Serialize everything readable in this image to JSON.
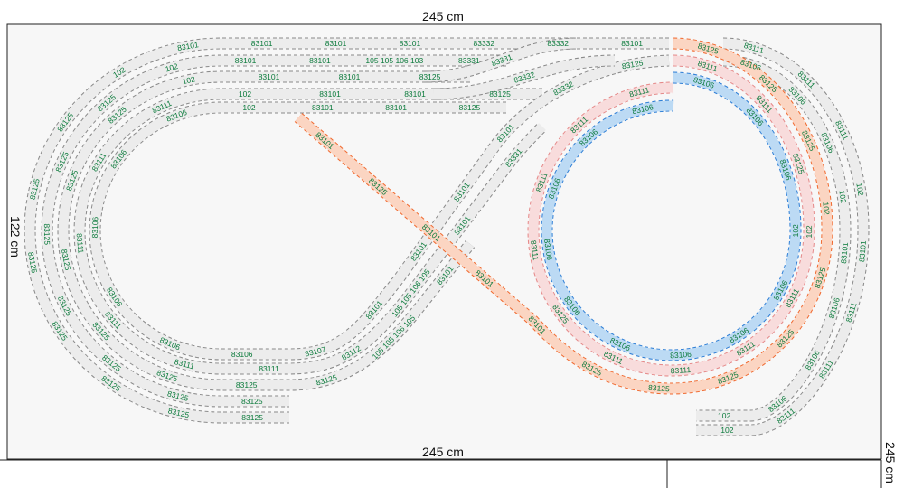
{
  "dimensions": {
    "top_width": "245 cm",
    "bottom_width": "245 cm",
    "left_height": "122 cm",
    "right_width": "245 cm"
  },
  "colors": {
    "gray_fill": "#ececec",
    "gray_edge": "#8a8a8a",
    "pink_fill": "#f8dcdc",
    "pink_edge": "#e58a8a",
    "orange_fill": "#fbd5c2",
    "orange_edge": "#f06a30",
    "blue_fill": "#bcdaf4",
    "blue_edge": "#2f7fd6",
    "label": "#0b7a3b"
  },
  "tracks": {
    "left0": [
      "83101",
      "83332",
      "83332",
      "83101",
      "83101",
      "83101",
      "83101",
      "102",
      "83125",
      "83125",
      "83125",
      "83125",
      "83125",
      "83125",
      "83125"
    ],
    "left1": [
      "83331",
      "105 105 106 103",
      "83101",
      "83101",
      "102",
      "83125",
      "83125",
      "83125",
      "83125",
      "83125",
      "83125",
      "83125"
    ],
    "left2": [
      "83125",
      "83101",
      "83101",
      "102",
      "83125",
      "83125",
      "83125",
      "83125",
      "83125",
      "83125",
      "83125",
      "105 105 106 105",
      "83101"
    ],
    "left3": [
      "83125",
      "83101",
      "83101",
      "102",
      "83111",
      "83111",
      "83111",
      "83111",
      "83111",
      "83111",
      "83112",
      "105 105 106 105",
      "83101",
      "83331"
    ],
    "left4": [
      "83125",
      "83101",
      "83101",
      "102",
      "83106",
      "83106",
      "83106",
      "83106",
      "83106",
      "83106",
      "83107",
      "83101",
      "83101",
      "83101",
      "83101",
      "83332",
      "83125"
    ],
    "branch_a": [
      "83331"
    ],
    "branch_b": [
      "83332"
    ],
    "orange": [
      "83125",
      "83125",
      "83125",
      "102",
      "83125",
      "83125",
      "83125",
      "83125",
      "83125",
      "83101",
      "83101",
      "83101",
      "83125",
      "83101"
    ],
    "pink": [
      "83111",
      "83111",
      "83125",
      "102",
      "83111",
      "83111",
      "83111",
      "83111",
      "83125",
      "83111",
      "83111",
      "83111",
      "83111"
    ],
    "blue": [
      "83106",
      "83106",
      "83106",
      "102",
      "83106",
      "83106",
      "83106",
      "83106",
      "83106",
      "83106",
      "83106",
      "83106",
      "83106"
    ],
    "right_outer": [
      "83111",
      "83111",
      "83111",
      "102",
      "83101",
      "83111",
      "83111",
      "83111",
      "102"
    ],
    "right_inner": [
      "83106",
      "83106",
      "83106",
      "102",
      "83101",
      "83106",
      "83106",
      "83106",
      "102"
    ]
  }
}
